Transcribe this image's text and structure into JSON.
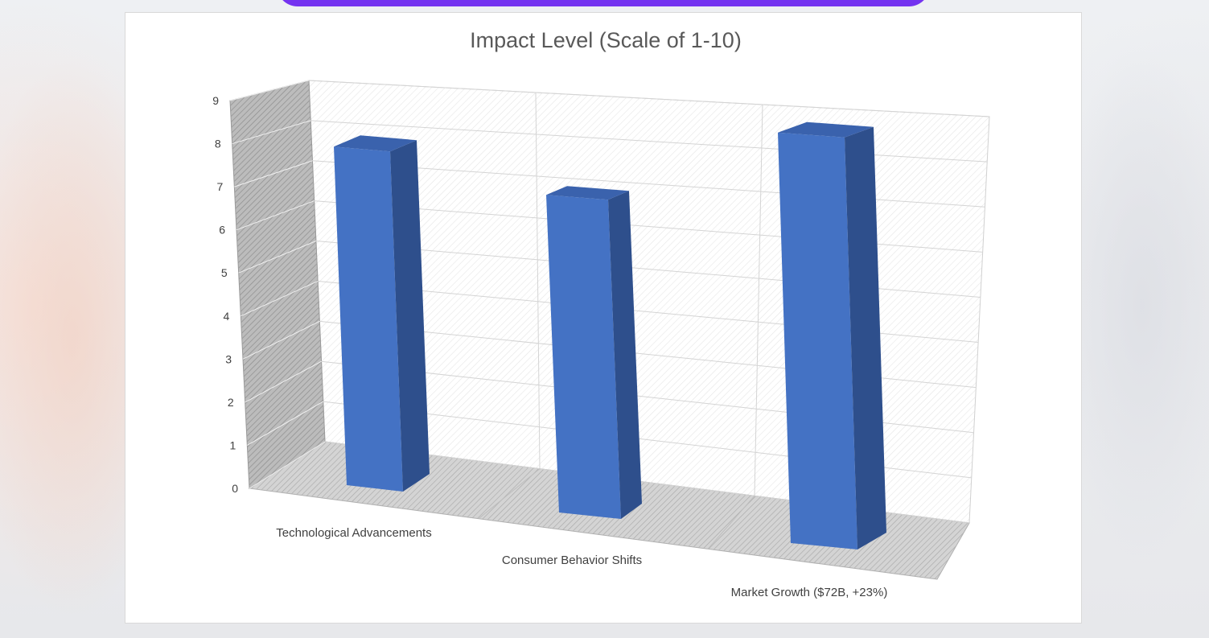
{
  "chart_data": {
    "type": "bar",
    "title": "Impact Level (Scale of 1-10)",
    "categories": [
      "Technological Advancements",
      "Consumer Behavior Shifts",
      "Market Growth ($72B, +23%)"
    ],
    "values": [
      8,
      7,
      9
    ],
    "y_ticks": [
      "0",
      "1",
      "2",
      "3",
      "4",
      "5",
      "6",
      "7",
      "8",
      "9"
    ],
    "ylim": [
      0,
      9
    ],
    "grid": true,
    "legend": "none",
    "colors": {
      "bar_front": "#4472c4",
      "bar_side": "#2e4f8c",
      "bar_top": "#3a62ad"
    }
  }
}
